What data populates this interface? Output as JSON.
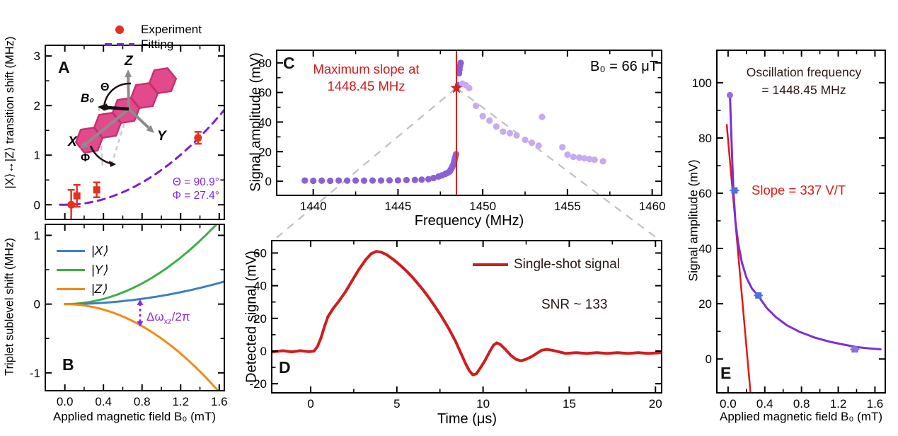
{
  "figure": {
    "background": "#ffffff"
  },
  "colors": {
    "experiment_red": "#e4301f",
    "fitting_purple": "#7d1fd1",
    "annotation_purple": "#8a2be2",
    "state_x_blue": "#3f7fc1",
    "state_y_green": "#3faf46",
    "state_z_orange": "#f58a10",
    "resonance_red": "#d42020",
    "dots_dark_purple": "#8a5fd8",
    "dots_light_purple": "#c7aaf0",
    "trace_red": "#cf1d1d",
    "slope_red": "#dd1a10",
    "curve_purple": "#7a2fd8",
    "marker_blue": "#4f6fe3",
    "connector_gray": "#c0c0c0",
    "molecule_pink": "#e34a8c",
    "molecule_edge": "#c53070",
    "axis_gray": "#8c8c8c"
  },
  "panels": {
    "A": {
      "label": "A",
      "legend": {
        "experiment": "Experiment",
        "fitting": "Fitting"
      },
      "theta_text": "Θ = 90.9°",
      "phi_text": "Φ = 27.4°",
      "inset": {
        "z": "Z",
        "y": "Y",
        "x": "X",
        "b0": "B₀",
        "theta": "Θ",
        "phi": "Φ"
      }
    },
    "B": {
      "label": "B",
      "legend": {
        "x": "|X⟩",
        "y": "|Y⟩",
        "z": "|Z⟩"
      },
      "arrow_label_pre": "Δω",
      "arrow_label_sub": "xz",
      "arrow_label_post": "/2π"
    },
    "C": {
      "label": "C",
      "max_slope_line1": "Maximum slope at",
      "max_slope_line2": "1448.45 MHz",
      "field_text": "B₀ = 66 μT"
    },
    "D": {
      "label": "D",
      "legend": "Single-shot signal",
      "snr_text": "SNR ~ 133"
    },
    "E": {
      "label": "E",
      "osc_line1": "Oscillation frequency",
      "osc_line2": "= 1448.45 MHz",
      "slope_text": "Slope = 337 V/T"
    }
  },
  "chart_data": [
    {
      "id": "A",
      "type": "scatter",
      "title": "",
      "xlabel": "",
      "ylabel": "|X⟩↔|Z⟩  transition shift (MHz)",
      "xlim": [
        -0.21,
        1.66
      ],
      "ylim": [
        -0.31,
        3.23
      ],
      "xticks": {
        "major": [
          0,
          0.4,
          0.8,
          1.2,
          1.6
        ],
        "minor": [
          0.2,
          0.6,
          1.0,
          1.4
        ],
        "labels": []
      },
      "yticks": {
        "major": [
          0,
          1,
          2,
          3
        ],
        "minor": [
          0.5,
          1.5,
          2.5
        ],
        "labels": [
          "0",
          "1",
          "2",
          "3"
        ]
      },
      "legend_position": "top-left-outside",
      "series": [
        {
          "name": "Fitting",
          "type": "quad",
          "coeff": 0.7,
          "xrange": [
            -0.05,
            1.66
          ],
          "color": "#7d1fd1",
          "width": 3,
          "dash": "10,8"
        },
        {
          "name": "Experiment-circles",
          "type": "scatter",
          "marker": "circle",
          "size": 5.5,
          "color": "#e4301f",
          "points": [
            [
              0.066,
              0.0,
              0.3
            ],
            [
              1.38,
              1.35,
              0.12
            ]
          ]
        },
        {
          "name": "Experiment-squares",
          "type": "scatter",
          "marker": "square",
          "size": 5,
          "color": "#e4301f",
          "points": [
            [
              0.125,
              0.18,
              0.22
            ],
            [
              0.33,
              0.3,
              0.15
            ]
          ]
        }
      ]
    },
    {
      "id": "B",
      "type": "line",
      "title": "",
      "xlabel": "Applied magnetic field B₀ (mT)",
      "ylabel": "Triplet sublevel shift (MHz)",
      "xlim": [
        -0.21,
        1.66
      ],
      "ylim": [
        -1.27,
        1.17
      ],
      "xticks": {
        "major": [
          0,
          0.4,
          0.8,
          1.2,
          1.6
        ],
        "minor": [
          0.2,
          0.6,
          1.0,
          1.4
        ],
        "labels": [
          "0.0",
          "0.4",
          "0.8",
          "1.2",
          "1.6"
        ]
      },
      "yticks": {
        "major": [
          -1,
          0,
          1
        ],
        "minor": [
          -0.5,
          0.5
        ],
        "labels": [
          "-1",
          "0",
          "1"
        ]
      },
      "legend_position": "upper-left-inside",
      "series": [
        {
          "name": "|Y⟩",
          "type": "quad",
          "coeff": 0.47,
          "xrange": [
            0,
            1.66
          ],
          "color": "#3faf46",
          "width": 3
        },
        {
          "name": "|X⟩",
          "type": "quad",
          "coeff": 0.12,
          "xrange": [
            0,
            1.66
          ],
          "color": "#3f7fc1",
          "width": 3
        },
        {
          "name": "|Z⟩",
          "type": "quad",
          "coeff": -0.5,
          "xrange": [
            0,
            1.66
          ],
          "color": "#f58a10",
          "width": 3
        },
        {
          "name": "delta-omega-arrow",
          "type": "varrow",
          "x": 0.78,
          "y1": 0.07,
          "y2": -0.33,
          "color": "#8a2be2"
        }
      ]
    },
    {
      "id": "C",
      "type": "scatter",
      "title": "",
      "xlabel": "Frequency (MHz)",
      "ylabel": "Signal amplitude (mV)",
      "xlim": [
        1437.8,
        1460.6
      ],
      "ylim": [
        -10,
        89
      ],
      "xticks": {
        "major": [
          1440,
          1445,
          1450,
          1455,
          1460
        ],
        "minor": [
          1442.5,
          1447.5,
          1452.5,
          1457.5
        ],
        "labels": [
          "1440",
          "1445",
          "1450",
          "1455",
          "1460"
        ]
      },
      "yticks": {
        "major": [
          0,
          20,
          40,
          60,
          80
        ],
        "minor": [
          10,
          30,
          50,
          70
        ],
        "labels": [
          "0",
          "20",
          "40",
          "60",
          "80"
        ]
      },
      "annotations": {
        "max_slope_frequency_mhz": 1448.45,
        "field_uT": 66
      },
      "series": [
        {
          "name": "sweep-up",
          "type": "scatter",
          "marker": "circle",
          "size": 4.6,
          "color": "#8a5fd8",
          "points": [
            [
              1439.5,
              0.5
            ],
            [
              1440.0,
              0.3
            ],
            [
              1440.5,
              0.4
            ],
            [
              1441.0,
              0.3
            ],
            [
              1441.5,
              0.5
            ],
            [
              1442.0,
              0.4
            ],
            [
              1442.5,
              0.5
            ],
            [
              1443.0,
              0.4
            ],
            [
              1443.5,
              0.5
            ],
            [
              1444.0,
              0.5
            ],
            [
              1444.5,
              0.6
            ],
            [
              1445.0,
              0.6
            ],
            [
              1445.5,
              0.8
            ],
            [
              1446.0,
              0.9
            ],
            [
              1446.4,
              1.1
            ],
            [
              1446.8,
              1.4
            ],
            [
              1447.1,
              2.2
            ],
            [
              1447.4,
              3.2
            ],
            [
              1447.6,
              4.0
            ],
            [
              1447.8,
              5.0
            ],
            [
              1447.95,
              5.8
            ],
            [
              1448.05,
              6.6
            ],
            [
              1448.1,
              7.5
            ],
            [
              1448.15,
              8.5
            ],
            [
              1448.2,
              9.6
            ],
            [
              1448.25,
              11.0
            ],
            [
              1448.3,
              12.5
            ],
            [
              1448.33,
              14.0
            ],
            [
              1448.36,
              15.5
            ],
            [
              1448.4,
              17.0
            ],
            [
              1448.43,
              18.3
            ],
            [
              1448.55,
              65.0
            ],
            [
              1448.6,
              73.0
            ],
            [
              1448.63,
              75.5
            ],
            [
              1448.66,
              78.0
            ],
            [
              1448.7,
              80.0
            ]
          ]
        },
        {
          "name": "sweep-down",
          "type": "scatter",
          "marker": "circle",
          "size": 4.6,
          "color": "#c7aaf0",
          "points": [
            [
              1448.8,
              66
            ],
            [
              1449.0,
              65
            ],
            [
              1449.2,
              63
            ],
            [
              1449.6,
              51
            ],
            [
              1450.0,
              44
            ],
            [
              1450.4,
              41
            ],
            [
              1450.8,
              37
            ],
            [
              1451.2,
              33.5
            ],
            [
              1451.6,
              32.5
            ],
            [
              1452.0,
              31
            ],
            [
              1452.5,
              28
            ],
            [
              1452.9,
              26
            ],
            [
              1453.3,
              24
            ],
            [
              1453.5,
              43.5
            ],
            [
              1454.7,
              23
            ],
            [
              1455.0,
              18
            ],
            [
              1455.35,
              16.5
            ],
            [
              1455.7,
              16
            ],
            [
              1456.0,
              15.5
            ],
            [
              1456.3,
              15
            ],
            [
              1456.6,
              14.5
            ],
            [
              1457.1,
              13.5
            ]
          ]
        },
        {
          "name": "max-slope-line",
          "type": "vline",
          "x": 1448.45,
          "color": "#d42020",
          "width": 2
        },
        {
          "name": "max-slope-star",
          "type": "star",
          "x": 1448.45,
          "y": 63,
          "size": 9,
          "color": "#d42020"
        }
      ]
    },
    {
      "id": "D",
      "type": "line",
      "title": "",
      "xlabel": "Time (μs)",
      "ylabel": "Detected signal (mV)",
      "xlim": [
        -2.3,
        20.4
      ],
      "ylim": [
        -26,
        68
      ],
      "xticks": {
        "major": [
          0,
          5,
          10,
          15,
          20
        ],
        "minor": [
          2.5,
          7.5,
          12.5,
          17.5
        ],
        "labels": [
          "0",
          "5",
          "10",
          "15",
          "20"
        ]
      },
      "yticks": {
        "major": [
          -20,
          0,
          20,
          40,
          60
        ],
        "minor": [
          -10,
          10,
          30,
          50
        ],
        "labels": [
          "-20",
          "0",
          "20",
          "40",
          "60"
        ]
      },
      "annotations": {
        "snr": 133
      },
      "series": [
        {
          "name": "Single-shot signal",
          "type": "poly",
          "color": "#cf1d1d",
          "width": 4,
          "points": [
            [
              -2.2,
              -0.5
            ],
            [
              -1.6,
              0.2
            ],
            [
              -1.1,
              -0.5
            ],
            [
              -0.6,
              0.2
            ],
            [
              -0.1,
              -0.4
            ],
            [
              0.2,
              0
            ],
            [
              0.4,
              3
            ],
            [
              0.6,
              8
            ],
            [
              0.8,
              15
            ],
            [
              1.0,
              21
            ],
            [
              1.3,
              26
            ],
            [
              1.6,
              30
            ],
            [
              2.0,
              36
            ],
            [
              2.4,
              43
            ],
            [
              2.8,
              50
            ],
            [
              3.2,
              56
            ],
            [
              3.5,
              59.5
            ],
            [
              3.8,
              61
            ],
            [
              4.1,
              60.5
            ],
            [
              4.4,
              59
            ],
            [
              4.8,
              56
            ],
            [
              5.2,
              52.5
            ],
            [
              5.6,
              48.5
            ],
            [
              6.0,
              44
            ],
            [
              6.4,
              39
            ],
            [
              6.8,
              33.5
            ],
            [
              7.2,
              27.5
            ],
            [
              7.6,
              21
            ],
            [
              8.0,
              14
            ],
            [
              8.4,
              6
            ],
            [
              8.7,
              -1
            ],
            [
              9.0,
              -8
            ],
            [
              9.2,
              -12
            ],
            [
              9.4,
              -14.5
            ],
            [
              9.6,
              -14
            ],
            [
              9.8,
              -11
            ],
            [
              10.1,
              -6
            ],
            [
              10.4,
              0
            ],
            [
              10.6,
              3.5
            ],
            [
              10.8,
              5
            ],
            [
              11.0,
              4
            ],
            [
              11.3,
              1
            ],
            [
              11.6,
              -2.5
            ],
            [
              11.9,
              -5
            ],
            [
              12.2,
              -6
            ],
            [
              12.5,
              -5
            ],
            [
              12.8,
              -3.5
            ],
            [
              13.1,
              -1.5
            ],
            [
              13.4,
              0.5
            ],
            [
              13.7,
              1
            ],
            [
              14.0,
              0.5
            ],
            [
              14.4,
              -0.5
            ],
            [
              14.8,
              -1.5
            ],
            [
              15.4,
              -1
            ],
            [
              16.0,
              -1.5
            ],
            [
              16.6,
              -1
            ],
            [
              17.2,
              -1.5
            ],
            [
              17.8,
              -1
            ],
            [
              18.4,
              -1.5
            ],
            [
              19.0,
              -1
            ],
            [
              19.6,
              -1.5
            ],
            [
              20.3,
              -1
            ]
          ]
        }
      ]
    },
    {
      "id": "E",
      "type": "scatter",
      "title": "",
      "xlabel": "Applied magnetic field B₀ (mT)",
      "ylabel": "Signal amplitude (mV)",
      "xlim": [
        -0.13,
        1.72
      ],
      "ylim": [
        -12.5,
        112
      ],
      "xticks": {
        "major": [
          0,
          0.4,
          0.8,
          1.2,
          1.6
        ],
        "minor": [
          0.2,
          0.6,
          1.0,
          1.4
        ],
        "labels": [
          "0.0",
          "0.4",
          "0.8",
          "1.2",
          "1.6"
        ]
      },
      "yticks": {
        "major": [
          0,
          20,
          40,
          60,
          80,
          100
        ],
        "minor": [
          10,
          30,
          50,
          70,
          90
        ],
        "labels": [
          "0",
          "20",
          "40",
          "60",
          "80",
          "100"
        ]
      },
      "annotations": {
        "oscillation_frequency_mhz": 1448.45,
        "slope_v_per_t": 337
      },
      "series": [
        {
          "name": "slope-line",
          "type": "segment",
          "p1": [
            -0.015,
            85
          ],
          "p2": [
            0.245,
            -12.5
          ],
          "color": "#dd1a10",
          "width": 2.5
        },
        {
          "name": "fit-curve",
          "type": "poly",
          "color": "#7a2fd8",
          "width": 3,
          "points": [
            [
              0.02,
              95.5
            ],
            [
              0.03,
              86
            ],
            [
              0.045,
              72
            ],
            [
              0.06,
              60
            ],
            [
              0.08,
              50
            ],
            [
              0.11,
              42
            ],
            [
              0.15,
              35
            ],
            [
              0.2,
              29.5
            ],
            [
              0.26,
              25.5
            ],
            [
              0.33,
              22.8
            ],
            [
              0.42,
              18.5
            ],
            [
              0.52,
              15.2
            ],
            [
              0.64,
              12.2
            ],
            [
              0.78,
              9.8
            ],
            [
              0.94,
              7.8
            ],
            [
              1.1,
              6.3
            ],
            [
              1.26,
              5.2
            ],
            [
              1.4,
              4.3
            ],
            [
              1.55,
              3.8
            ],
            [
              1.66,
              3.5
            ]
          ]
        },
        {
          "name": "data-squares",
          "type": "scatter",
          "marker": "square",
          "size": 4.5,
          "color": "#4f6fe3",
          "points": [
            [
              0.07,
              61,
              0,
              0.05
            ],
            [
              0.33,
              23,
              0,
              0.05
            ],
            [
              1.38,
              3.5,
              0,
              0.05
            ]
          ]
        },
        {
          "name": "data-dots",
          "type": "scatter",
          "marker": "circle",
          "size": 4.5,
          "color": "#9a6ae0",
          "points": [
            [
              0.02,
              95.5
            ],
            [
              1.38,
              3.5
            ]
          ]
        }
      ]
    }
  ]
}
